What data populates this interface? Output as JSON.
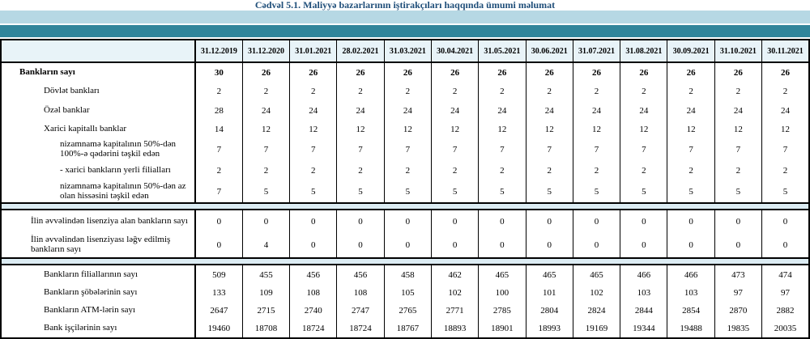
{
  "title": "Cədvəl 5.1. Maliyyə bazarlarının iştirakçıları haqqında ümumi məlumat",
  "colors": {
    "title": "#1f4e79",
    "band_light": "#b6d8e4",
    "band_teal": "#31859b",
    "header_bg": "#e8f3f8",
    "separator_bg": "#dcecf3",
    "border": "#000000"
  },
  "table": {
    "corner_label": "",
    "columns": [
      "31.12.2019",
      "31.12.2020",
      "31.01.2021",
      "28.02.2021",
      "31.03.2021",
      "30.04.2021",
      "31.05.2021",
      "30.06.2021",
      "31.07.2021",
      "31.08.2021",
      "30.09.2021",
      "31.10.2021",
      "30.11.2021"
    ],
    "rows": [
      {
        "label": "Bankların sayı",
        "indent": 0,
        "bold": true,
        "values": [
          30,
          26,
          26,
          26,
          26,
          26,
          26,
          26,
          26,
          26,
          26,
          26,
          26
        ]
      },
      {
        "label": "Dövlət bankları",
        "indent": 2,
        "bold": false,
        "values": [
          2,
          2,
          2,
          2,
          2,
          2,
          2,
          2,
          2,
          2,
          2,
          2,
          2
        ]
      },
      {
        "label": "Özəl banklar",
        "indent": 2,
        "bold": false,
        "values": [
          28,
          24,
          24,
          24,
          24,
          24,
          24,
          24,
          24,
          24,
          24,
          24,
          24
        ]
      },
      {
        "label": "Xarici kapitallı banklar",
        "indent": 2,
        "bold": false,
        "values": [
          14,
          12,
          12,
          12,
          12,
          12,
          12,
          12,
          12,
          12,
          12,
          12,
          12
        ]
      },
      {
        "label": "nizamnamə kapitalının 50%-dən 100%-ə qədərini təşkil edən",
        "indent": 3,
        "bold": false,
        "values": [
          7,
          7,
          7,
          7,
          7,
          7,
          7,
          7,
          7,
          7,
          7,
          7,
          7
        ]
      },
      {
        "label": "-  xarici bankların yerli filialları",
        "indent": 3,
        "bold": false,
        "values": [
          2,
          2,
          2,
          2,
          2,
          2,
          2,
          2,
          2,
          2,
          2,
          2,
          2
        ]
      },
      {
        "label": "nizamnamə kapitalının 50%-dən az olan hissəsini  təşkil edən",
        "indent": 3,
        "bold": false,
        "values": [
          7,
          5,
          5,
          5,
          5,
          5,
          5,
          5,
          5,
          5,
          5,
          5,
          5
        ]
      },
      {
        "type": "separator"
      },
      {
        "label": "İlin əvvəlindən lisenziya alan bankların sayı",
        "indent": 1,
        "bold": false,
        "values": [
          0,
          0,
          0,
          0,
          0,
          0,
          0,
          0,
          0,
          0,
          0,
          0,
          0
        ]
      },
      {
        "label": "İlin əvvəlindən lisenziyası ləğv edilmiş bankların sayı",
        "indent": 1,
        "bold": false,
        "values": [
          0,
          4,
          0,
          0,
          0,
          0,
          0,
          0,
          0,
          0,
          0,
          0,
          0
        ]
      },
      {
        "type": "separator"
      },
      {
        "label": "Bankların filiallarının sayı",
        "indent": 2,
        "bold": false,
        "values": [
          509,
          455,
          456,
          456,
          458,
          462,
          465,
          465,
          465,
          466,
          466,
          473,
          474
        ]
      },
      {
        "label": "Bankların şöbələrinin sayı",
        "indent": 2,
        "bold": false,
        "values": [
          133,
          109,
          108,
          108,
          105,
          102,
          100,
          101,
          102,
          103,
          103,
          97,
          97
        ]
      },
      {
        "label": "Bankların ATM-lərin sayı",
        "indent": 2,
        "bold": false,
        "values": [
          2647,
          2715,
          2740,
          2747,
          2765,
          2771,
          2785,
          2804,
          2824,
          2844,
          2854,
          2870,
          2882
        ]
      },
      {
        "label": "Bank işçilərinin sayı",
        "indent": 2,
        "bold": false,
        "values": [
          19460,
          18708,
          18724,
          18724,
          18767,
          18893,
          18901,
          18993,
          19169,
          19344,
          19488,
          19835,
          20035
        ]
      }
    ]
  }
}
